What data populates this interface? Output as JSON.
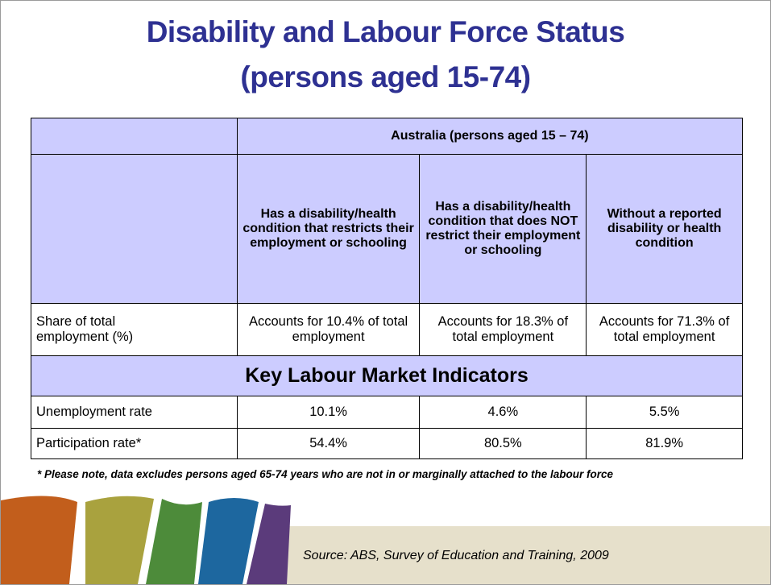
{
  "title": [
    "Disability and Labour Force Status",
    "(persons aged 15-74)"
  ],
  "table": {
    "group_header": "Australia (persons aged 15 – 74)",
    "column_headers": [
      "Has a disability/health condition that restricts their employment or schooling",
      "Has a disability/health condition that does NOT restrict their employment or schooling",
      "Without a reported disability or health condition"
    ],
    "share_row": {
      "label": "Share of total employment (%)",
      "cells": [
        "Accounts for 10.4% of total employment",
        "Accounts for 18.3% of total employment",
        "Accounts for 71.3% of total employment"
      ]
    },
    "section_header": "Key Labour Market Indicators",
    "rows": [
      {
        "label": "Unemployment rate",
        "values": [
          "10.1%",
          "4.6%",
          "5.5%"
        ]
      },
      {
        "label": "Participation rate*",
        "values": [
          "54.4%",
          "80.5%",
          "81.9%"
        ]
      }
    ]
  },
  "note": "* Please note, data excludes persons aged 65-74 years who are not in or marginally attached to the labour force",
  "source": "Source: ABS, Survey of Education and Training, 2009"
}
